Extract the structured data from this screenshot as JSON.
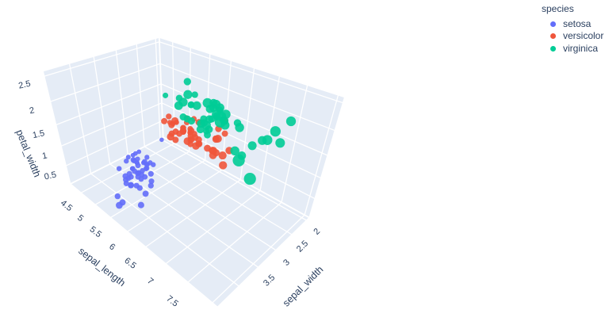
{
  "page": {
    "background": "#ffffff"
  },
  "legend": {
    "title": "species",
    "items": [
      {
        "label": "setosa",
        "color": "#636efa"
      },
      {
        "label": "versicolor",
        "color": "#ef553b"
      },
      {
        "label": "virginica",
        "color": "#00cc96"
      }
    ]
  },
  "chart_data": {
    "type": "scatter",
    "subtype": "scatter3d",
    "title": "",
    "axes": {
      "x": {
        "title": "sepal_length",
        "range": [
          4.1,
          8.1
        ],
        "tick_labels": [
          4.5,
          5,
          5.5,
          6,
          6.5,
          7,
          7.5
        ],
        "grid_ticks": [
          4.5,
          5,
          5.5,
          6,
          6.5,
          7,
          7.5,
          8
        ]
      },
      "y": {
        "title": "sepal_width",
        "range": [
          1.9,
          4.5
        ],
        "tick_labels": [
          2,
          2.5,
          3,
          3.5
        ],
        "grid_ticks": [
          2,
          2.5,
          3,
          3.5,
          4,
          4.5
        ]
      },
      "z": {
        "title": "petal_width",
        "range": [
          0,
          2.6
        ],
        "tick_labels": [
          0.5,
          1,
          1.5,
          2,
          2.5
        ],
        "grid_ticks": [
          0.5,
          1,
          1.5,
          2,
          2.5
        ]
      }
    },
    "style": {
      "wall_color": "#e5ecf6",
      "grid_color": "#ffffff",
      "font_color": "#2a3f5f",
      "marker_opacity": 0.9
    },
    "legend_position": "top-right",
    "series": [
      {
        "name": "setosa",
        "color": "#636efa",
        "points": [
          [
            5.1,
            3.5,
            0.2
          ],
          [
            4.9,
            3.0,
            0.2
          ],
          [
            4.7,
            3.2,
            0.2
          ],
          [
            4.6,
            3.1,
            0.2
          ],
          [
            5.0,
            3.6,
            0.2
          ],
          [
            5.4,
            3.9,
            0.4
          ],
          [
            4.6,
            3.4,
            0.3
          ],
          [
            5.0,
            3.4,
            0.2
          ],
          [
            4.4,
            2.9,
            0.2
          ],
          [
            4.9,
            3.1,
            0.1
          ],
          [
            5.4,
            3.7,
            0.2
          ],
          [
            4.8,
            3.4,
            0.2
          ],
          [
            4.8,
            3.0,
            0.1
          ],
          [
            4.3,
            3.0,
            0.1
          ],
          [
            5.8,
            4.0,
            0.2
          ],
          [
            5.7,
            4.4,
            0.4
          ],
          [
            5.4,
            3.9,
            0.4
          ],
          [
            5.1,
            3.5,
            0.3
          ],
          [
            5.7,
            3.8,
            0.3
          ],
          [
            5.1,
            3.8,
            0.3
          ],
          [
            5.4,
            3.4,
            0.2
          ],
          [
            5.1,
            3.7,
            0.4
          ],
          [
            4.6,
            3.6,
            0.2
          ],
          [
            5.1,
            3.3,
            0.5
          ],
          [
            4.8,
            3.4,
            0.2
          ],
          [
            5.0,
            3.0,
            0.2
          ],
          [
            5.0,
            3.4,
            0.4
          ],
          [
            5.2,
            3.5,
            0.2
          ],
          [
            5.2,
            3.4,
            0.2
          ],
          [
            4.7,
            3.2,
            0.2
          ],
          [
            4.8,
            3.1,
            0.2
          ],
          [
            5.4,
            3.4,
            0.4
          ],
          [
            5.2,
            4.1,
            0.1
          ],
          [
            5.5,
            4.2,
            0.2
          ],
          [
            4.9,
            3.1,
            0.2
          ],
          [
            5.0,
            3.2,
            0.2
          ],
          [
            5.5,
            3.5,
            0.2
          ],
          [
            4.9,
            3.6,
            0.1
          ],
          [
            4.4,
            3.0,
            0.2
          ],
          [
            5.1,
            3.4,
            0.2
          ],
          [
            5.0,
            3.5,
            0.3
          ],
          [
            4.5,
            2.3,
            0.3
          ],
          [
            4.4,
            3.2,
            0.2
          ],
          [
            5.0,
            3.5,
            0.6
          ],
          [
            5.1,
            3.8,
            0.4
          ],
          [
            4.8,
            3.0,
            0.3
          ],
          [
            5.1,
            3.8,
            0.2
          ],
          [
            4.6,
            3.2,
            0.2
          ],
          [
            5.3,
            3.7,
            0.2
          ],
          [
            5.0,
            3.3,
            0.2
          ]
        ]
      },
      {
        "name": "versicolor",
        "color": "#ef553b",
        "points": [
          [
            7.0,
            3.2,
            1.4
          ],
          [
            6.4,
            3.2,
            1.5
          ],
          [
            6.9,
            3.1,
            1.5
          ],
          [
            5.5,
            2.3,
            1.3
          ],
          [
            6.5,
            2.8,
            1.5
          ],
          [
            5.7,
            2.8,
            1.3
          ],
          [
            6.3,
            3.3,
            1.6
          ],
          [
            4.9,
            2.4,
            1.0
          ],
          [
            6.6,
            2.9,
            1.3
          ],
          [
            5.2,
            2.7,
            1.4
          ],
          [
            5.0,
            2.0,
            1.0
          ],
          [
            5.9,
            3.0,
            1.5
          ],
          [
            6.0,
            2.2,
            1.0
          ],
          [
            6.1,
            2.9,
            1.4
          ],
          [
            5.6,
            2.9,
            1.3
          ],
          [
            6.7,
            3.1,
            1.4
          ],
          [
            5.6,
            3.0,
            1.5
          ],
          [
            5.8,
            2.7,
            1.0
          ],
          [
            6.2,
            2.2,
            1.5
          ],
          [
            5.6,
            2.5,
            1.1
          ],
          [
            5.9,
            3.2,
            1.8
          ],
          [
            6.1,
            2.8,
            1.3
          ],
          [
            6.3,
            2.5,
            1.5
          ],
          [
            6.1,
            2.8,
            1.2
          ],
          [
            6.4,
            2.9,
            1.3
          ],
          [
            6.6,
            3.0,
            1.4
          ],
          [
            6.8,
            2.8,
            1.4
          ],
          [
            6.7,
            3.0,
            1.7
          ],
          [
            6.0,
            2.9,
            1.5
          ],
          [
            5.7,
            2.6,
            1.0
          ],
          [
            5.5,
            2.4,
            1.1
          ],
          [
            5.5,
            2.4,
            1.0
          ],
          [
            5.8,
            2.7,
            1.2
          ],
          [
            6.0,
            2.7,
            1.6
          ],
          [
            5.4,
            3.0,
            1.5
          ],
          [
            6.0,
            3.4,
            1.6
          ],
          [
            6.7,
            3.1,
            1.5
          ],
          [
            6.3,
            2.3,
            1.3
          ],
          [
            5.6,
            3.0,
            1.3
          ],
          [
            5.5,
            2.5,
            1.3
          ],
          [
            5.5,
            2.6,
            1.2
          ],
          [
            6.1,
            3.0,
            1.4
          ],
          [
            5.8,
            2.6,
            1.2
          ],
          [
            5.0,
            2.3,
            1.0
          ],
          [
            5.6,
            2.7,
            1.3
          ],
          [
            5.7,
            3.0,
            1.2
          ],
          [
            5.7,
            2.9,
            1.3
          ],
          [
            6.2,
            2.9,
            1.3
          ],
          [
            5.1,
            2.5,
            1.1
          ],
          [
            5.7,
            2.8,
            1.3
          ]
        ]
      },
      {
        "name": "virginica",
        "color": "#00cc96",
        "points": [
          [
            6.3,
            3.3,
            2.5
          ],
          [
            5.8,
            2.7,
            1.9
          ],
          [
            7.1,
            3.0,
            2.1
          ],
          [
            6.3,
            2.9,
            1.8
          ],
          [
            6.5,
            3.0,
            2.2
          ],
          [
            7.6,
            3.0,
            2.1
          ],
          [
            4.9,
            2.5,
            1.7
          ],
          [
            7.3,
            2.9,
            1.8
          ],
          [
            6.7,
            2.5,
            1.8
          ],
          [
            7.2,
            3.6,
            2.5
          ],
          [
            6.5,
            3.2,
            2.0
          ],
          [
            6.4,
            2.7,
            1.9
          ],
          [
            6.8,
            3.0,
            2.1
          ],
          [
            5.7,
            2.5,
            2.0
          ],
          [
            5.8,
            2.8,
            2.4
          ],
          [
            6.4,
            3.2,
            2.3
          ],
          [
            6.5,
            3.0,
            1.8
          ],
          [
            7.7,
            3.8,
            2.2
          ],
          [
            7.7,
            2.6,
            2.3
          ],
          [
            6.0,
            2.2,
            1.5
          ],
          [
            6.9,
            3.2,
            2.3
          ],
          [
            5.6,
            2.8,
            2.0
          ],
          [
            7.7,
            2.8,
            2.0
          ],
          [
            6.3,
            2.7,
            1.8
          ],
          [
            6.7,
            3.3,
            2.1
          ],
          [
            7.2,
            3.2,
            1.8
          ],
          [
            6.2,
            2.8,
            1.8
          ],
          [
            6.1,
            3.0,
            1.8
          ],
          [
            6.4,
            2.8,
            2.1
          ],
          [
            7.2,
            3.0,
            1.6
          ],
          [
            7.4,
            2.8,
            1.9
          ],
          [
            7.9,
            3.8,
            2.0
          ],
          [
            6.4,
            2.8,
            2.2
          ],
          [
            6.3,
            2.8,
            1.5
          ],
          [
            6.1,
            2.6,
            1.4
          ],
          [
            7.7,
            3.0,
            2.3
          ],
          [
            6.3,
            3.4,
            2.4
          ],
          [
            6.4,
            3.1,
            1.8
          ],
          [
            6.0,
            3.0,
            1.8
          ],
          [
            6.9,
            3.1,
            2.1
          ],
          [
            6.7,
            3.1,
            2.4
          ],
          [
            6.9,
            3.1,
            2.3
          ],
          [
            5.8,
            2.7,
            1.9
          ],
          [
            6.8,
            3.2,
            2.3
          ],
          [
            6.7,
            3.3,
            2.5
          ],
          [
            6.7,
            3.0,
            2.3
          ],
          [
            6.3,
            2.5,
            1.9
          ],
          [
            6.5,
            3.0,
            2.0
          ],
          [
            6.2,
            3.4,
            2.3
          ],
          [
            5.9,
            3.0,
            1.8
          ]
        ]
      }
    ]
  }
}
